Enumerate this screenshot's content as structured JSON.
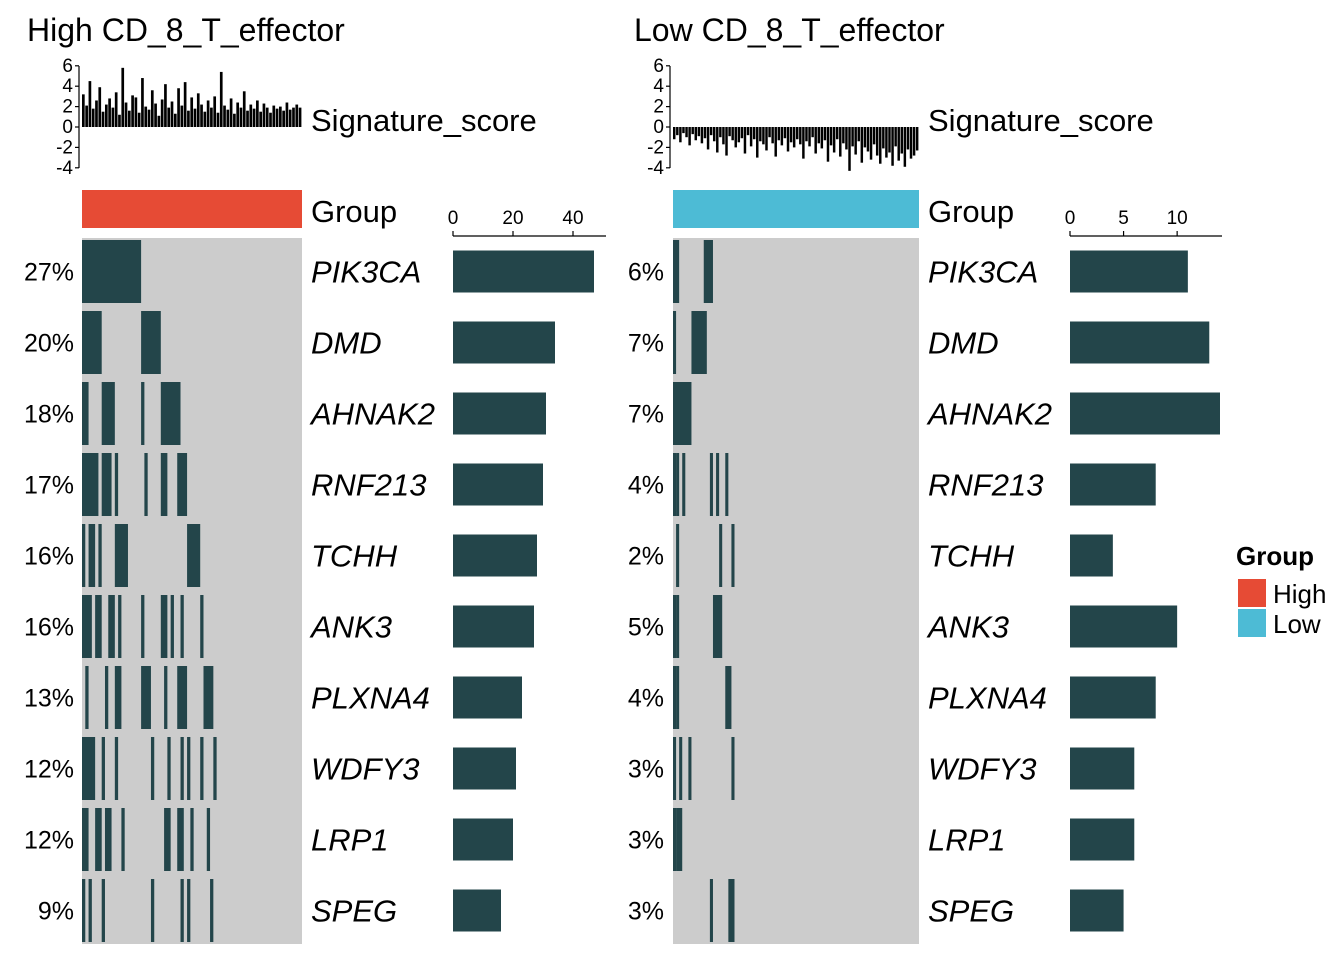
{
  "chart_data": [
    {
      "type": "oncoplot",
      "title": "High CD_8_T_effector",
      "group": "High",
      "group_color": "#E64B35",
      "signature_label": "Signature_score",
      "group_label": "Group",
      "signature_yticks": [
        "6",
        "4",
        "2",
        "0",
        "-2",
        "-4"
      ],
      "signature_ylim": [
        -4.5,
        6.5
      ],
      "n_samples": 67,
      "signature_scores": [
        3.2,
        2.1,
        4.5,
        1.8,
        2.6,
        3.9,
        1.5,
        2.2,
        2.8,
        1.9,
        3.4,
        1.2,
        5.8,
        2.4,
        1.6,
        3.1,
        2.9,
        1.4,
        4.8,
        2.0,
        1.7,
        3.6,
        2.3,
        1.1,
        2.7,
        4.2,
        1.9,
        2.5,
        1.3,
        3.8,
        2.1,
        4.4,
        1.6,
        2.9,
        1.8,
        3.3,
        2.2,
        1.5,
        2.6,
        1.9,
        3.0,
        1.4,
        5.4,
        2.1,
        1.7,
        2.8,
        1.3,
        2.4,
        1.9,
        3.5,
        1.6,
        2.2,
        1.8,
        2.6,
        1.5,
        2.3,
        1.9,
        1.4,
        2.1,
        1.8,
        2.0,
        1.6,
        2.4,
        1.7,
        1.9,
        2.2,
        1.9
      ],
      "bar_axis_ticks": [
        "0",
        "20",
        "40"
      ],
      "bar_axis_max": 50,
      "genes": [
        {
          "name": "PIK3CA",
          "pct": "27%",
          "count": 47,
          "spans": [
            [
              0,
              18
            ]
          ]
        },
        {
          "name": "DMD",
          "pct": "20%",
          "count": 34,
          "spans": [
            [
              0,
              6
            ],
            [
              18,
              24
            ]
          ]
        },
        {
          "name": "AHNAK2",
          "pct": "18%",
          "count": 31,
          "spans": [
            [
              0,
              2
            ],
            [
              6,
              10
            ],
            [
              18,
              19
            ],
            [
              24,
              30
            ]
          ]
        },
        {
          "name": "RNF213",
          "pct": "17%",
          "count": 30,
          "spans": [
            [
              0,
              5
            ],
            [
              6,
              9
            ],
            [
              10,
              11
            ],
            [
              19,
              20
            ],
            [
              24,
              26
            ],
            [
              29,
              32
            ]
          ]
        },
        {
          "name": "TCHH",
          "pct": "16%",
          "count": 28,
          "spans": [
            [
              0,
              1
            ],
            [
              2,
              4
            ],
            [
              5,
              6
            ],
            [
              10,
              14
            ],
            [
              32,
              36
            ]
          ]
        },
        {
          "name": "ANK3",
          "pct": "16%",
          "count": 27,
          "spans": [
            [
              0,
              3
            ],
            [
              4,
              6
            ],
            [
              8,
              10
            ],
            [
              11,
              12
            ],
            [
              18,
              19
            ],
            [
              24,
              26
            ],
            [
              27,
              28
            ],
            [
              30,
              31
            ],
            [
              36,
              37
            ]
          ]
        },
        {
          "name": "PLXNA4",
          "pct": "13%",
          "count": 23,
          "spans": [
            [
              1,
              2
            ],
            [
              7,
              8
            ],
            [
              10,
              12
            ],
            [
              18,
              21
            ],
            [
              25,
              26
            ],
            [
              29,
              32
            ],
            [
              37,
              40
            ]
          ]
        },
        {
          "name": "WDFY3",
          "pct": "12%",
          "count": 21,
          "spans": [
            [
              0,
              4
            ],
            [
              6,
              7
            ],
            [
              10,
              11
            ],
            [
              21,
              22
            ],
            [
              26,
              27
            ],
            [
              30,
              31
            ],
            [
              32,
              33
            ],
            [
              36,
              37
            ],
            [
              40,
              41
            ]
          ]
        },
        {
          "name": "LRP1",
          "pct": "12%",
          "count": 20,
          "spans": [
            [
              0,
              2
            ],
            [
              4,
              6
            ],
            [
              7,
              9
            ],
            [
              12,
              13
            ],
            [
              25,
              27
            ],
            [
              29,
              31
            ],
            [
              33,
              34
            ],
            [
              38,
              39
            ]
          ]
        },
        {
          "name": "SPEG",
          "pct": "9%",
          "count": 16,
          "spans": [
            [
              0,
              1
            ],
            [
              2,
              3
            ],
            [
              6,
              7
            ],
            [
              21,
              22
            ],
            [
              30,
              31
            ],
            [
              32,
              33
            ],
            [
              39,
              40
            ]
          ]
        }
      ]
    },
    {
      "type": "oncoplot",
      "title": "Low CD_8_T_effector",
      "group": "Low",
      "group_color": "#4DBBD5",
      "signature_label": "Signature_score",
      "group_label": "Group",
      "signature_yticks": [
        "6",
        "4",
        "2",
        "0",
        "-2",
        "-4"
      ],
      "signature_ylim": [
        -4.5,
        6.5
      ],
      "n_samples": 80,
      "signature_scores": [
        -1.2,
        -0.8,
        -1.5,
        -0.6,
        -1.0,
        -1.8,
        -0.7,
        -1.3,
        -0.9,
        -1.6,
        -1.1,
        -2.2,
        -0.8,
        -1.4,
        -2.5,
        -1.0,
        -1.7,
        -2.8,
        -0.9,
        -1.3,
        -2.0,
        -1.5,
        -1.1,
        -2.6,
        -0.8,
        -1.9,
        -1.2,
        -3.0,
        -1.4,
        -1.7,
        -2.3,
        -1.0,
        -1.6,
        -2.9,
        -1.3,
        -1.8,
        -1.1,
        -2.4,
        -1.5,
        -2.0,
        -1.2,
        -1.7,
        -3.1,
        -1.4,
        -1.9,
        -1.0,
        -2.6,
        -1.6,
        -2.1,
        -1.3,
        -3.4,
        -1.8,
        -2.5,
        -1.2,
        -2.9,
        -1.6,
        -2.2,
        -4.3,
        -1.9,
        -2.7,
        -1.4,
        -3.5,
        -2.0,
        -2.4,
        -3.2,
        -1.7,
        -2.8,
        -3.6,
        -2.1,
        -3.0,
        -2.5,
        -3.8,
        -1.9,
        -3.3,
        -2.6,
        -3.9,
        -2.2,
        -3.1,
        -2.8,
        -2.3
      ],
      "bar_axis_ticks": [
        "0",
        "5",
        "10"
      ],
      "bar_axis_max": 14,
      "genes": [
        {
          "name": "PIK3CA",
          "pct": "6%",
          "count": 11,
          "spans": [
            [
              0,
              2
            ],
            [
              10,
              13
            ]
          ]
        },
        {
          "name": "DMD",
          "pct": "7%",
          "count": 13,
          "spans": [
            [
              0,
              1
            ],
            [
              6,
              11
            ]
          ]
        },
        {
          "name": "AHNAK2",
          "pct": "7%",
          "count": 14,
          "spans": [
            [
              0,
              6
            ]
          ]
        },
        {
          "name": "RNF213",
          "pct": "4%",
          "count": 8,
          "spans": [
            [
              0,
              1
            ],
            [
              1,
              2
            ],
            [
              3,
              4
            ],
            [
              12,
              13
            ],
            [
              14,
              15
            ],
            [
              17,
              18
            ]
          ]
        },
        {
          "name": "TCHH",
          "pct": "2%",
          "count": 4,
          "spans": [
            [
              1,
              2
            ],
            [
              15,
              16
            ],
            [
              19,
              20
            ]
          ]
        },
        {
          "name": "ANK3",
          "pct": "5%",
          "count": 10,
          "spans": [
            [
              0,
              1
            ],
            [
              1,
              2
            ],
            [
              13,
              16
            ]
          ]
        },
        {
          "name": "PLXNA4",
          "pct": "4%",
          "count": 8,
          "spans": [
            [
              0,
              1
            ],
            [
              1,
              2
            ],
            [
              17,
              19
            ]
          ]
        },
        {
          "name": "WDFY3",
          "pct": "3%",
          "count": 6,
          "spans": [
            [
              0,
              1
            ],
            [
              2,
              3
            ],
            [
              5,
              6
            ],
            [
              19,
              20
            ]
          ]
        },
        {
          "name": "LRP1",
          "pct": "3%",
          "count": 6,
          "spans": [
            [
              0,
              1
            ],
            [
              1,
              3
            ]
          ]
        },
        {
          "name": "SPEG",
          "pct": "3%",
          "count": 5,
          "spans": [
            [
              12,
              13
            ],
            [
              18,
              20
            ]
          ]
        }
      ]
    }
  ],
  "legend": {
    "title": "Group",
    "items": [
      {
        "label": "High",
        "color": "#E64B35"
      },
      {
        "label": "Low",
        "color": "#4DBBD5"
      }
    ]
  },
  "colors": {
    "mutation": "#23454A",
    "background": "#CCCCCC"
  }
}
